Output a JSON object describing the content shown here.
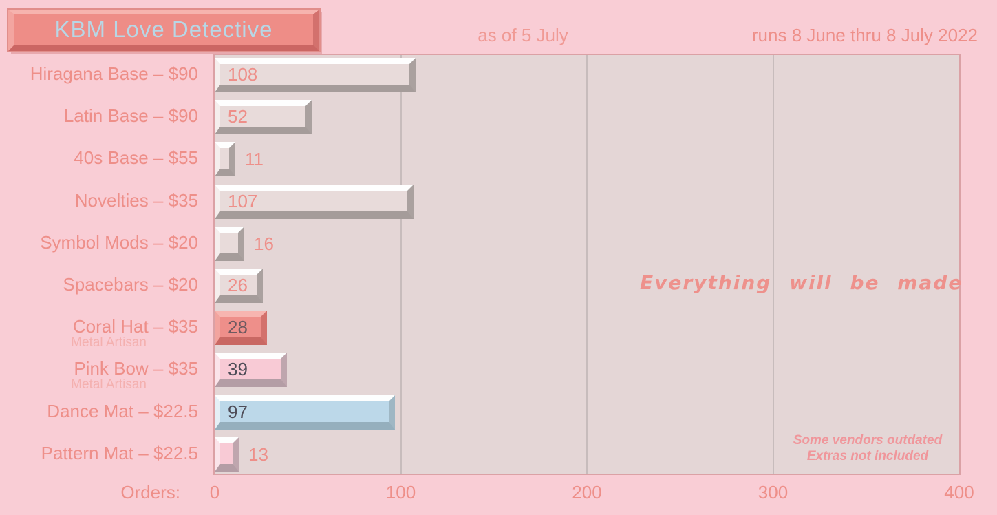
{
  "page_title": "KBM Love Detective",
  "header": {
    "as_of": "as of 5 July",
    "date_range": "runs 8 June thru 8 July 2022"
  },
  "annotation": "Everything will be made",
  "footnotes": [
    "Some vendors outdated",
    "Extras not included"
  ],
  "axis": {
    "label": "Orders:",
    "ticks": [
      0,
      100,
      200,
      300,
      400
    ],
    "gridlines": [
      100,
      200,
      300
    ],
    "max": 400
  },
  "palette": {
    "page_background": "#f9cdd5",
    "plot_background": "#e4d6d6",
    "plot_border": "#dba1a5",
    "gridline": "#c7bcbc",
    "coral_text": "#ee8f89",
    "light_coral_text": "#f4b0af",
    "title_key_face": "#ee8d87",
    "title_text_blue": "#b7d7e6",
    "bar_grey_face": "#e8dbda",
    "bar_coral_face": "#ee8f8a",
    "bar_pink_face": "#f8cad5",
    "bar_blue_face": "#bcd8e9",
    "dark_value_text": "#4f4d58"
  },
  "chart_data": {
    "type": "bar",
    "orientation": "horizontal",
    "title": "KBM Love Detective",
    "subtitle": "as of 5 July",
    "note": "runs 8 June thru 8 July 2022",
    "xlabel": "Orders:",
    "xlim": [
      0,
      400
    ],
    "x_ticks": [
      0,
      100,
      200,
      300,
      400
    ],
    "grid": "vertical at 100/200/300",
    "legend": "none",
    "categories": [
      "Hiragana Base – $90",
      "Latin Base – $90",
      "40s Base – $55",
      "Novelties – $35",
      "Symbol Mods – $20",
      "Spacebars – $20",
      "Coral Hat – $35",
      "Pink Bow – $35",
      "Dance Mat – $22.5",
      "Pattern Mat – $22.5"
    ],
    "sublabels": [
      "",
      "",
      "",
      "",
      "",
      "",
      "Metal Artisan",
      "Metal Artisan",
      "",
      ""
    ],
    "values": [
      108,
      52,
      11,
      107,
      16,
      26,
      28,
      39,
      97,
      13
    ],
    "bar_styles": [
      "grey",
      "grey",
      "grey",
      "grey",
      "grey",
      "grey",
      "coral",
      "pink",
      "blue",
      "pink"
    ],
    "value_positions": [
      "inside",
      "inside",
      "outside",
      "inside",
      "outside",
      "inside",
      "inside",
      "inside",
      "inside",
      "outside"
    ],
    "value_colors": [
      "#ee8f89",
      "#ee8f89",
      "#ee8f89",
      "#ee8f89",
      "#ee8f89",
      "#ee8f89",
      "#6f5a60",
      "#4f4d58",
      "#4f4d58",
      "#ee8f89"
    ],
    "annotations": [
      "Everything will be made",
      "Some vendors outdated",
      "Extras not included"
    ]
  }
}
